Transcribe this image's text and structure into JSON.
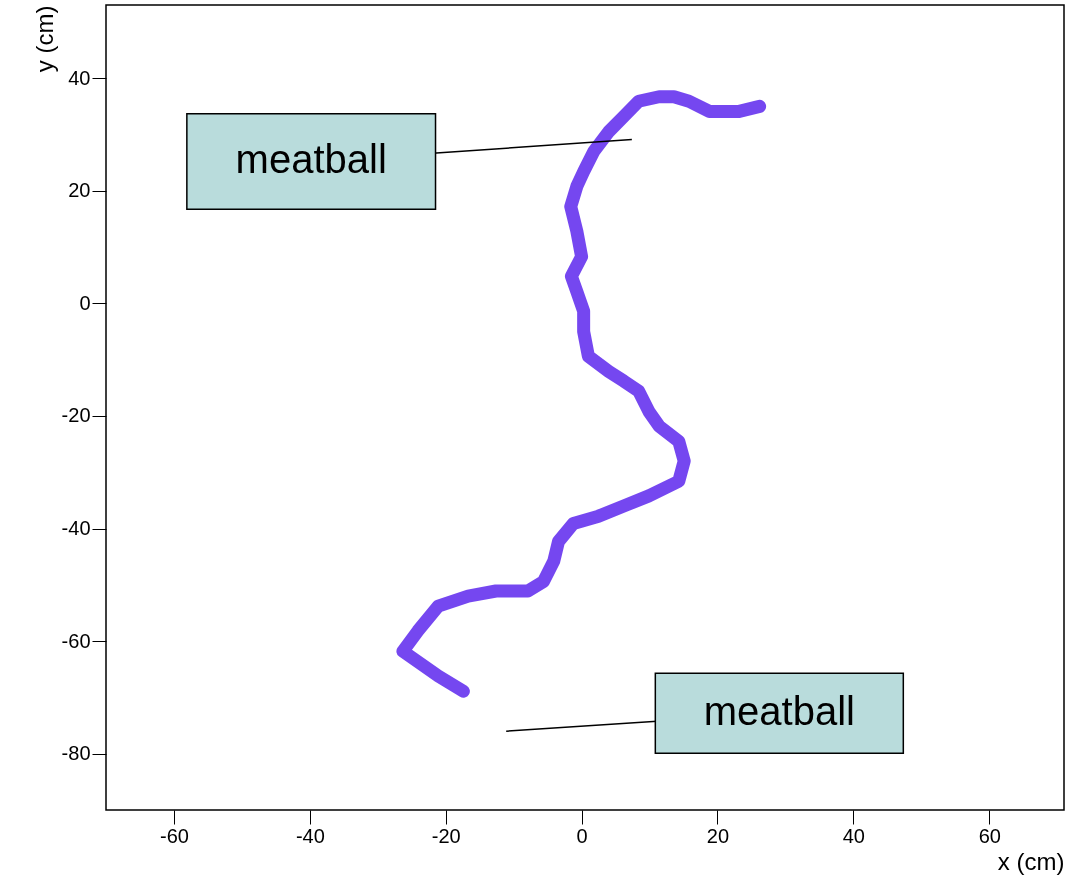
{
  "chart_data": {
    "type": "line",
    "xlabel": "x (cm)",
    "ylabel": "y (cm)",
    "xlim": [
      -70,
      71
    ],
    "xticks": [
      -60,
      -40,
      -20,
      0,
      20,
      40,
      60
    ],
    "ylim": [
      -90,
      53
    ],
    "yticks": [
      -80,
      -60,
      -40,
      -20,
      0,
      20,
      40
    ],
    "grid": false,
    "marker": "none",
    "line_style": "solid",
    "series": [
      {
        "color": "#6633ee",
        "x": [
          -17.4,
          -21.1,
          -26.3,
          -24.1,
          -21.1,
          -16.7,
          -12.6,
          -7.9,
          -5.6,
          -4.1,
          -3.4,
          -1.2,
          2.5,
          6.2,
          9.9,
          14.3,
          15.1,
          14.3,
          11.4,
          9.9,
          8.4,
          6.2,
          4.0,
          1.0,
          0.3,
          0.3,
          -0.7,
          -1.5,
          0.0,
          -0.7,
          -1.6,
          -0.7,
          0.3,
          1.8,
          4.0,
          6.2,
          8.4,
          11.4,
          13.6,
          15.8,
          18.8,
          23.2,
          26.2
        ],
        "values": [
          -68.9,
          -66.2,
          -61.8,
          -58.2,
          -53.8,
          -52.0,
          -51.1,
          -51.1,
          -49.4,
          -45.8,
          -42.3,
          -39.1,
          -37.8,
          -36.0,
          -34.2,
          -31.6,
          -28.0,
          -24.5,
          -21.8,
          -19.2,
          -15.6,
          -13.8,
          -12.1,
          -9.4,
          -5.0,
          -1.4,
          2.1,
          4.8,
          8.3,
          12.8,
          17.2,
          20.8,
          23.4,
          27.0,
          30.5,
          33.2,
          35.9,
          36.7,
          36.7,
          35.9,
          34.1,
          34.1,
          35.0
        ]
      }
    ],
    "annotations": [
      "meatball",
      "meatball"
    ]
  }
}
